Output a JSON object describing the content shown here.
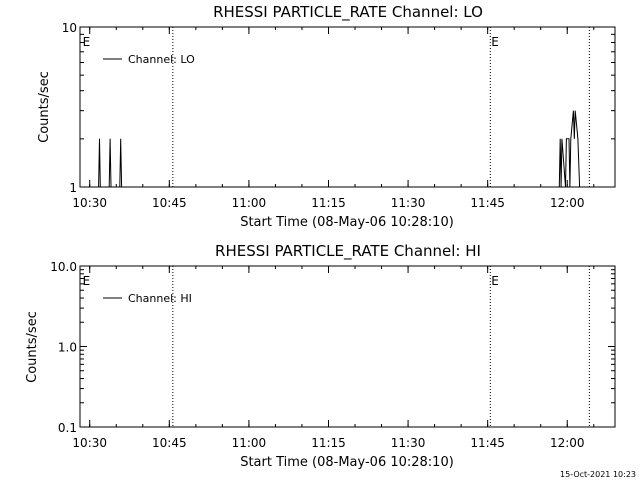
{
  "timestamp": "15-Oct-2021 10:23",
  "chart_data": [
    {
      "type": "line",
      "title": "RHESSI PARTICLE_RATE Channel: LO",
      "xlabel": "Start Time (08-May-06 10:28:10)",
      "ylabel": "Counts/sec",
      "y_scale": "log",
      "ylim": [
        1,
        10
      ],
      "yticks": [
        "1",
        "10"
      ],
      "xlim": [
        "10:28:10",
        "12:09:00"
      ],
      "xticks": [
        "10:30",
        "10:45",
        "11:00",
        "11:15",
        "11:30",
        "11:45",
        "12:00"
      ],
      "event_lines": [
        "10:45:40",
        "11:45:30",
        "12:04:10"
      ],
      "event_markers": [
        {
          "label": "E",
          "at": "10:28:40"
        },
        {
          "label": "E",
          "at": "11:45:40"
        }
      ],
      "legend": {
        "position": "top-left",
        "entries": [
          "Channel: LO"
        ]
      },
      "series": [
        {
          "name": "Channel: LO",
          "points": [
            [
              "10:31:40",
              1
            ],
            [
              "10:31:50",
              2
            ],
            [
              "10:32:00",
              1
            ],
            [
              "10:33:40",
              1
            ],
            [
              "10:33:50",
              2
            ],
            [
              "10:34:00",
              1
            ],
            [
              "10:35:40",
              1
            ],
            [
              "10:35:50",
              2
            ],
            [
              "10:36:00",
              1
            ],
            [
              "11:58:30",
              1
            ],
            [
              "11:58:40",
              2
            ],
            [
              "11:58:50",
              1
            ],
            [
              "11:59:00",
              2
            ],
            [
              "11:59:40",
              1
            ],
            [
              "11:59:50",
              2
            ],
            [
              "12:00:20",
              2
            ],
            [
              "12:00:30",
              1
            ],
            [
              "12:00:40",
              2
            ],
            [
              "12:01:10",
              3
            ],
            [
              "12:01:20",
              2
            ],
            [
              "12:01:30",
              3
            ],
            [
              "12:02:00",
              2
            ],
            [
              "12:02:20",
              1
            ],
            [
              "12:02:30",
              1
            ]
          ]
        }
      ]
    },
    {
      "type": "line",
      "title": "RHESSI PARTICLE_RATE Channel: HI",
      "xlabel": "Start Time (08-May-06 10:28:10)",
      "ylabel": "Counts/sec",
      "y_scale": "log",
      "ylim": [
        0.1,
        10
      ],
      "yticks": [
        "0.1",
        "1.0",
        "10.0"
      ],
      "xlim": [
        "10:28:10",
        "12:09:00"
      ],
      "xticks": [
        "10:30",
        "10:45",
        "11:00",
        "11:15",
        "11:30",
        "11:45",
        "12:00"
      ],
      "event_lines": [
        "10:45:40",
        "11:45:30",
        "12:04:10"
      ],
      "event_markers": [
        {
          "label": "E",
          "at": "10:28:40"
        },
        {
          "label": "E",
          "at": "11:45:40"
        }
      ],
      "legend": {
        "position": "top-left",
        "entries": [
          "Channel: HI"
        ]
      },
      "series": [
        {
          "name": "Channel: HI",
          "points": []
        }
      ]
    }
  ]
}
